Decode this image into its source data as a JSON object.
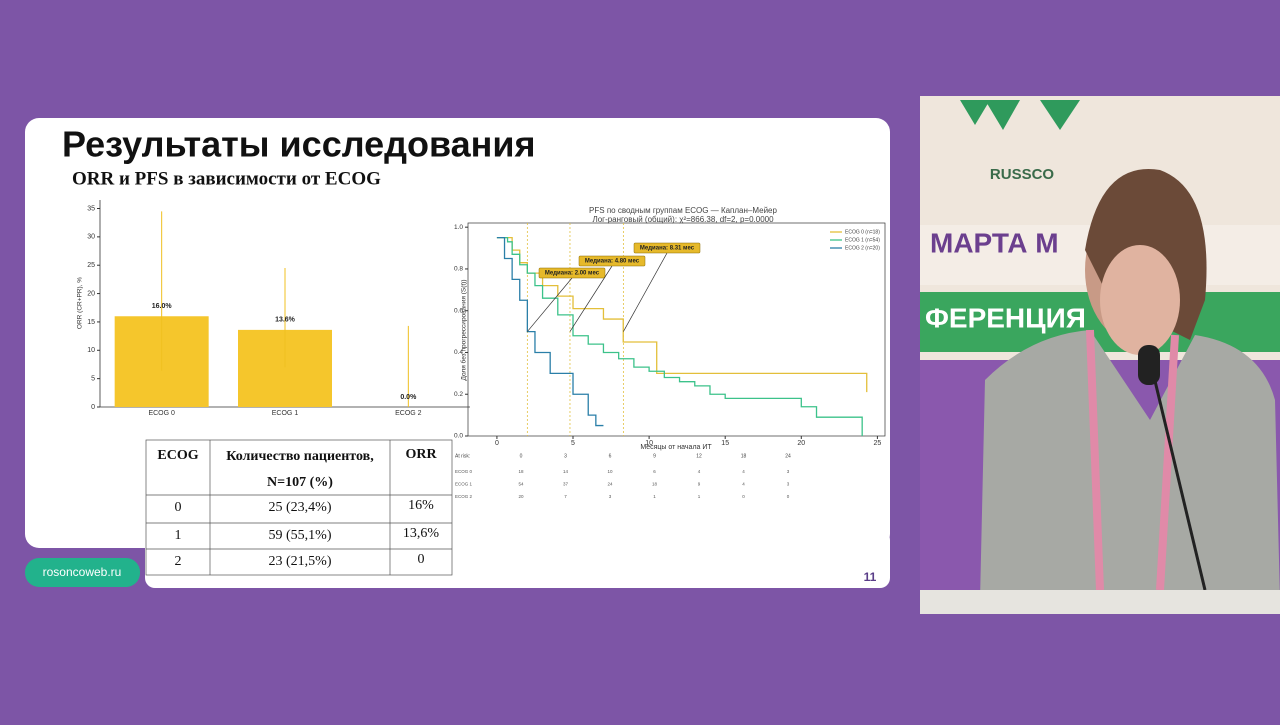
{
  "slide": {
    "title": "Результаты исследования",
    "subtitle": "ORR и PFS в зависимости от ECOG",
    "footer": "rosoncoweb.ru",
    "page_number": "11"
  },
  "table": {
    "header": [
      "ECOG",
      "Количество пациентов,",
      "N=107 (%)",
      "ORR"
    ],
    "rows": [
      [
        "0",
        "25 (23,4%)",
        "16%"
      ],
      [
        "1",
        "59 (55,1%)",
        "13,6%"
      ],
      [
        "2",
        "23 (21,5%)",
        "0"
      ]
    ]
  },
  "background_signs": [
    "RUSSCO",
    "МАРТА М",
    "ФЕРЕНЦИЯ"
  ],
  "chart_data": [
    {
      "type": "bar",
      "ylabel": "ORR (CR+PR), %",
      "categories": [
        "ECOG 0",
        "ECOG 1",
        "ECOG 2"
      ],
      "values": [
        16.0,
        13.6,
        0.0
      ],
      "value_labels": [
        "16.0%",
        "13.6%",
        "0.0%"
      ],
      "ci_low": [
        6.4,
        7.0,
        0.0
      ],
      "ci_high": [
        34.5,
        24.5,
        14.3
      ],
      "color": "#f5c62c",
      "ylim": [
        0,
        36.5
      ],
      "yticks": [
        0,
        5,
        10,
        15,
        20,
        25,
        30,
        35
      ]
    },
    {
      "type": "line",
      "step": true,
      "title": "PFS по сводным группам ECOG — Каплан–Мейер",
      "subtitle": "Лог-ранговый (общий): χ²=866.38, df=2, p=0.0000",
      "xlabel": "Месяцы от начала ИТ",
      "ylabel": "Доля без прогрессирования (S(t))",
      "xlim": [
        -1.9,
        25.5
      ],
      "ylim": [
        0,
        1.02
      ],
      "xticks": [
        0,
        5,
        10,
        15,
        20,
        25
      ],
      "yticks": [
        {
          "value": 0,
          "label": "0.0"
        },
        0.2,
        0.4,
        0.6,
        0.8,
        {
          "value": 1,
          "label": "1.0"
        }
      ],
      "series": [
        {
          "name": "ECOG 0 (n=18)",
          "color": "#e3bf3a",
          "x": [
            0,
            1,
            1.5,
            2,
            3,
            4,
            5,
            7,
            8.3,
            10.5,
            24.3
          ],
          "values": [
            0.95,
            0.89,
            0.83,
            0.78,
            0.72,
            0.67,
            0.61,
            0.56,
            0.45,
            0.3,
            0.21
          ]
        },
        {
          "name": "ECOG 1 (n=54)",
          "color": "#3cc28a",
          "x": [
            0,
            0.7,
            1,
            1.5,
            2,
            2.5,
            3,
            4,
            5,
            6,
            7,
            8,
            9,
            10,
            11,
            12,
            13,
            14,
            15,
            20,
            21,
            24
          ],
          "values": [
            0.95,
            0.93,
            0.87,
            0.82,
            0.78,
            0.72,
            0.66,
            0.58,
            0.48,
            0.44,
            0.4,
            0.37,
            0.33,
            0.31,
            0.28,
            0.26,
            0.24,
            0.2,
            0.18,
            0.14,
            0.09,
            0
          ]
        },
        {
          "name": "ECOG 2 (n=20)",
          "color": "#2a7fa8",
          "x": [
            0,
            0.5,
            1,
            1.5,
            2,
            2.5,
            3.5,
            5,
            6,
            6.5,
            7
          ],
          "values": [
            0.95,
            0.85,
            0.75,
            0.65,
            0.5,
            0.4,
            0.3,
            0.2,
            0.1,
            0.05,
            0.05
          ]
        }
      ],
      "medians": [
        {
          "value": 2.0,
          "label": "Медиана: 2.00 мес"
        },
        {
          "value": 4.8,
          "label": "Медиана: 4.80 мес"
        },
        {
          "value": 8.31,
          "label": "Медиана: 8.31 мес"
        }
      ],
      "at_risk": {
        "label": "At risk:",
        "times": [
          0,
          3,
          6,
          9,
          12,
          18,
          24
        ],
        "rows": [
          [
            "ECOG 0",
            18,
            14,
            10,
            6,
            4,
            4,
            3
          ],
          [
            "ECOG 1",
            54,
            37,
            24,
            18,
            9,
            4,
            3
          ],
          [
            "ECOG 2",
            20,
            7,
            3,
            1,
            1,
            0,
            0
          ]
        ]
      }
    }
  ]
}
